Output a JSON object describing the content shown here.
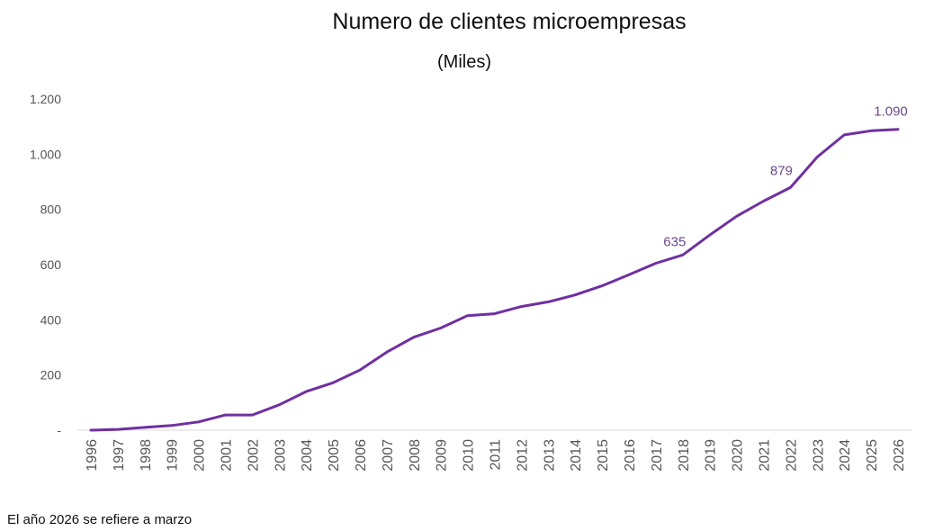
{
  "title": "Numero de clientes microempresas",
  "subtitle": "(Miles)",
  "footnote": "El año 2026 se refiere a marzo",
  "colors": {
    "line": "#7030a0",
    "label": "#6a4a8a",
    "axis": "#d9d9d9",
    "tick_text": "#555555"
  },
  "chart_data": {
    "type": "line",
    "title": "Numero de clientes microempresas",
    "subtitle": "(Miles)",
    "xlabel": "",
    "ylabel": "",
    "ylim": [
      0,
      1200
    ],
    "grid": false,
    "y_ticks": [
      0,
      200,
      400,
      600,
      800,
      1000,
      1200
    ],
    "y_tick_labels": [
      "-",
      "200",
      "400",
      "600",
      "800",
      "1.000",
      "1.200"
    ],
    "categories": [
      "1996",
      "1997",
      "1998",
      "1999",
      "2000",
      "2001",
      "2002",
      "2003",
      "2004",
      "2005",
      "2006",
      "2007",
      "2008",
      "2009",
      "2010",
      "2011",
      "2012",
      "2013",
      "2014",
      "2015",
      "2016",
      "2017",
      "2018",
      "2019",
      "2020",
      "2021",
      "2022",
      "2023",
      "2024",
      "2025",
      "2026"
    ],
    "series": [
      {
        "values": [
          0,
          3,
          10,
          17,
          30,
          55,
          55,
          92,
          140,
          172,
          218,
          283,
          337,
          370,
          415,
          422,
          448,
          465,
          490,
          523,
          563,
          605,
          635,
          707,
          775,
          830,
          879,
          990,
          1070,
          1085,
          1090
        ]
      }
    ],
    "data_labels": [
      {
        "category": "2018",
        "text": "635"
      },
      {
        "category": "2022",
        "text": "879"
      },
      {
        "category": "2026",
        "text": "1.090"
      }
    ]
  }
}
